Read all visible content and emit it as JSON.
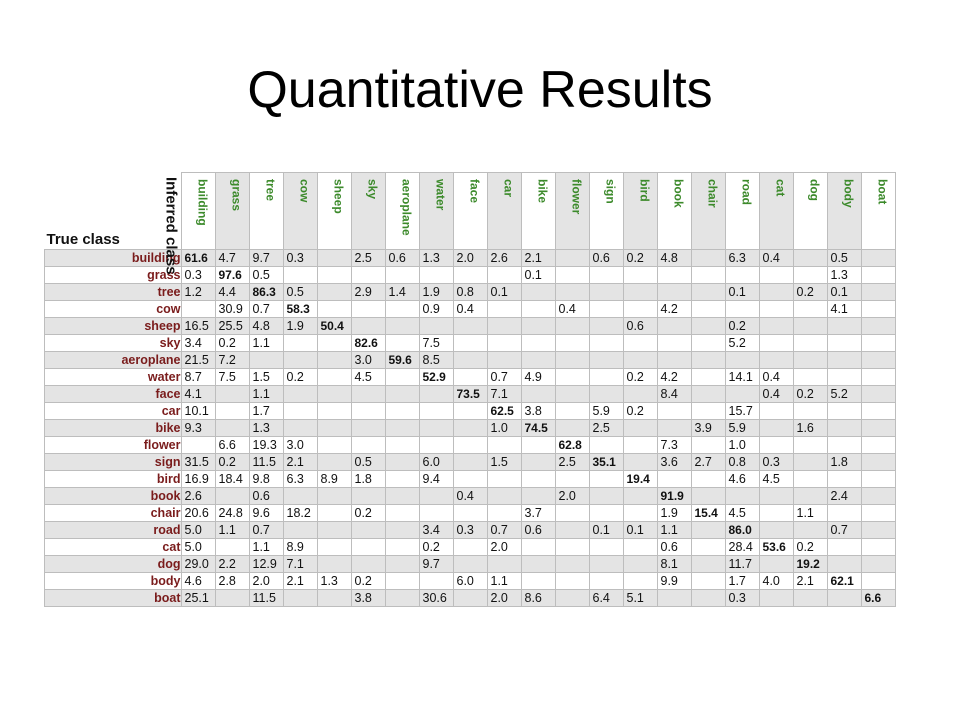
{
  "slide": {
    "title": "Quantitative Results"
  },
  "matrix": {
    "corner_col_label": "Inferred class",
    "corner_row_label": "True class",
    "columns": [
      "building",
      "grass",
      "tree",
      "cow",
      "sheep",
      "sky",
      "aeroplane",
      "water",
      "face",
      "car",
      "bike",
      "flower",
      "sign",
      "bird",
      "book",
      "chair",
      "road",
      "cat",
      "dog",
      "body",
      "boat"
    ],
    "rows": [
      {
        "label": "building",
        "values": [
          "61.6",
          "4.7",
          "9.7",
          "0.3",
          "",
          "2.5",
          "0.6",
          "1.3",
          "2.0",
          "2.6",
          "2.1",
          "",
          "0.6",
          "0.2",
          "4.8",
          "",
          "6.3",
          "0.4",
          "",
          "0.5",
          ""
        ]
      },
      {
        "label": "grass",
        "values": [
          "0.3",
          "97.6",
          "0.5",
          "",
          "",
          "",
          "",
          "",
          "",
          "",
          "0.1",
          "",
          "",
          "",
          "",
          "",
          "",
          "",
          "",
          "1.3",
          ""
        ]
      },
      {
        "label": "tree",
        "values": [
          "1.2",
          "4.4",
          "86.3",
          "0.5",
          "",
          "2.9",
          "1.4",
          "1.9",
          "0.8",
          "0.1",
          "",
          "",
          "",
          "",
          "",
          "",
          "0.1",
          "",
          "0.2",
          "0.1",
          ""
        ]
      },
      {
        "label": "cow",
        "values": [
          "",
          "30.9",
          "0.7",
          "58.3",
          "",
          "",
          "",
          "0.9",
          "0.4",
          "",
          "",
          "0.4",
          "",
          "",
          "4.2",
          "",
          "",
          "",
          "",
          "4.1",
          ""
        ]
      },
      {
        "label": "sheep",
        "values": [
          "16.5",
          "25.5",
          "4.8",
          "1.9",
          "50.4",
          "",
          "",
          "",
          "",
          "",
          "",
          "",
          "",
          "0.6",
          "",
          "",
          "0.2",
          "",
          "",
          "",
          ""
        ]
      },
      {
        "label": "sky",
        "values": [
          "3.4",
          "0.2",
          "1.1",
          "",
          "",
          "82.6",
          "",
          "7.5",
          "",
          "",
          "",
          "",
          "",
          "",
          "",
          "",
          "5.2",
          "",
          "",
          "",
          ""
        ]
      },
      {
        "label": "aeroplane",
        "values": [
          "21.5",
          "7.2",
          "",
          "",
          "",
          "3.0",
          "59.6",
          "8.5",
          "",
          "",
          "",
          "",
          "",
          "",
          "",
          "",
          "",
          "",
          "",
          "",
          ""
        ]
      },
      {
        "label": "water",
        "values": [
          "8.7",
          "7.5",
          "1.5",
          "0.2",
          "",
          "4.5",
          "",
          "52.9",
          "",
          "0.7",
          "4.9",
          "",
          "",
          "0.2",
          "4.2",
          "",
          "14.1",
          "0.4",
          "",
          "",
          ""
        ]
      },
      {
        "label": "face",
        "values": [
          "4.1",
          "",
          "1.1",
          "",
          "",
          "",
          "",
          "",
          "73.5",
          "7.1",
          "",
          "",
          "",
          "",
          "8.4",
          "",
          "",
          "0.4",
          "0.2",
          "5.2",
          ""
        ]
      },
      {
        "label": "car",
        "values": [
          "10.1",
          "",
          "1.7",
          "",
          "",
          "",
          "",
          "",
          "",
          "62.5",
          "3.8",
          "",
          "5.9",
          "0.2",
          "",
          "",
          "15.7",
          "",
          "",
          "",
          ""
        ]
      },
      {
        "label": "bike",
        "values": [
          "9.3",
          "",
          "1.3",
          "",
          "",
          "",
          "",
          "",
          "",
          "1.0",
          "74.5",
          "",
          "2.5",
          "",
          "",
          "3.9",
          "5.9",
          "",
          "1.6",
          "",
          ""
        ]
      },
      {
        "label": "flower",
        "values": [
          "",
          "6.6",
          "19.3",
          "3.0",
          "",
          "",
          "",
          "",
          "",
          "",
          "",
          "62.8",
          "",
          "",
          "7.3",
          "",
          "1.0",
          "",
          "",
          "",
          ""
        ]
      },
      {
        "label": "sign",
        "values": [
          "31.5",
          "0.2",
          "11.5",
          "2.1",
          "",
          "0.5",
          "",
          "6.0",
          "",
          "1.5",
          "",
          "2.5",
          "35.1",
          "",
          "3.6",
          "2.7",
          "0.8",
          "0.3",
          "",
          "1.8",
          ""
        ]
      },
      {
        "label": "bird",
        "values": [
          "16.9",
          "18.4",
          "9.8",
          "6.3",
          "8.9",
          "1.8",
          "",
          "9.4",
          "",
          "",
          "",
          "",
          "",
          "19.4",
          "",
          "",
          "4.6",
          "4.5",
          "",
          "",
          ""
        ]
      },
      {
        "label": "book",
        "values": [
          "2.6",
          "",
          "0.6",
          "",
          "",
          "",
          "",
          "",
          "0.4",
          "",
          "",
          "2.0",
          "",
          "",
          "91.9",
          "",
          "",
          "",
          "",
          "2.4",
          ""
        ]
      },
      {
        "label": "chair",
        "values": [
          "20.6",
          "24.8",
          "9.6",
          "18.2",
          "",
          "0.2",
          "",
          "",
          "",
          "",
          "3.7",
          "",
          "",
          "",
          "1.9",
          "15.4",
          "4.5",
          "",
          "1.1",
          "",
          ""
        ]
      },
      {
        "label": "road",
        "values": [
          "5.0",
          "1.1",
          "0.7",
          "",
          "",
          "",
          "",
          "3.4",
          "0.3",
          "0.7",
          "0.6",
          "",
          "0.1",
          "0.1",
          "1.1",
          "",
          "86.0",
          "",
          "",
          "0.7",
          ""
        ]
      },
      {
        "label": "cat",
        "values": [
          "5.0",
          "",
          "1.1",
          "8.9",
          "",
          "",
          "",
          "0.2",
          "",
          "2.0",
          "",
          "",
          "",
          "",
          "0.6",
          "",
          "28.4",
          "53.6",
          "0.2",
          "",
          ""
        ]
      },
      {
        "label": "dog",
        "values": [
          "29.0",
          "2.2",
          "12.9",
          "7.1",
          "",
          "",
          "",
          "9.7",
          "",
          "",
          "",
          "",
          "",
          "",
          "8.1",
          "",
          "11.7",
          "",
          "19.2",
          "",
          ""
        ]
      },
      {
        "label": "body",
        "values": [
          "4.6",
          "2.8",
          "2.0",
          "2.1",
          "1.3",
          "0.2",
          "",
          "",
          "6.0",
          "1.1",
          "",
          "",
          "",
          "",
          "9.9",
          "",
          "1.7",
          "4.0",
          "2.1",
          "62.1",
          ""
        ]
      },
      {
        "label": "boat",
        "values": [
          "25.1",
          "",
          "11.5",
          "",
          "",
          "3.8",
          "",
          "30.6",
          "",
          "2.0",
          "8.6",
          "",
          "6.4",
          "5.1",
          "",
          "",
          "0.3",
          "",
          "",
          "",
          "6.6"
        ]
      }
    ]
  }
}
